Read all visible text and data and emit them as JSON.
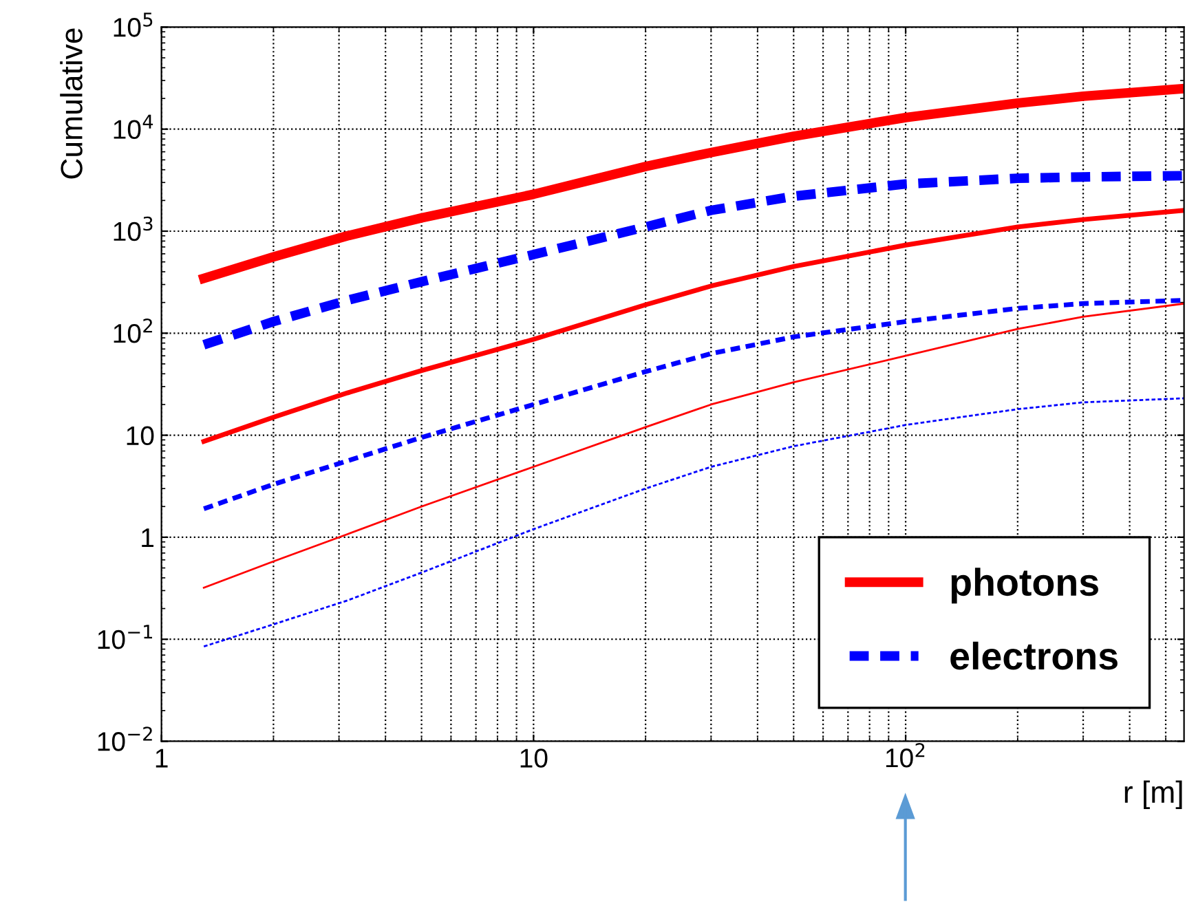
{
  "chart_data": {
    "type": "line",
    "xlabel": "r [m]",
    "ylabel": "Cumulative",
    "log": "xy",
    "x": [
      1.3,
      2,
      3.16,
      5,
      10,
      20,
      30,
      50,
      100,
      200,
      300,
      560
    ],
    "series": [
      {
        "name": "photons",
        "color": "#ff0000",
        "line_style": "solid",
        "values": [
          345,
          560,
          900,
          1350,
          2300,
          4300,
          5900,
          8500,
          13000,
          18000,
          21000,
          25000
        ]
      },
      {
        "name": "electrons",
        "color": "#0000ff",
        "line_style": "dashed",
        "values": [
          77,
          130,
          210,
          320,
          590,
          1100,
          1600,
          2200,
          2900,
          3300,
          3400,
          3500
        ]
      },
      {
        "color": "#ff0000",
        "line_style": "solid",
        "values": [
          8.7,
          15,
          26,
          43,
          87,
          190,
          290,
          450,
          730,
          1100,
          1300,
          1600
        ]
      },
      {
        "color": "#0000ff",
        "line_style": "dashed",
        "values": [
          1.9,
          3.3,
          5.6,
          9.5,
          20,
          42,
          63,
          92,
          130,
          175,
          195,
          210
        ]
      },
      {
        "color": "#ff0000",
        "line_style": "solid",
        "values": [
          0.32,
          0.58,
          1.07,
          2,
          4.9,
          12,
          20,
          33,
          60,
          110,
          145,
          195
        ]
      },
      {
        "color": "#0000ff",
        "line_style": "dashed",
        "values": [
          0.085,
          0.14,
          0.24,
          0.45,
          1.2,
          3,
          4.9,
          7.8,
          12.6,
          18,
          21,
          23
        ]
      }
    ],
    "xlim": [
      1,
      560
    ],
    "ylim": [
      0.01,
      100000
    ],
    "xticks": [
      1,
      10,
      {
        "value": 100,
        "label": "10$^{2}$"
      }
    ],
    "yticks": [
      {
        "value": 0.01,
        "label": "10$^{−2}$"
      },
      {
        "value": 0.1,
        "label": "10$^{−1}$"
      },
      1,
      10,
      {
        "value": 100,
        "label": "10$^{2}$"
      },
      {
        "value": 1000,
        "label": "10$^{3}$"
      },
      {
        "value": 10000,
        "label": "10$^{4}$"
      },
      {
        "value": 100000,
        "label": "10$^{5}$"
      }
    ],
    "grid": true,
    "legend": "bottom right"
  }
}
